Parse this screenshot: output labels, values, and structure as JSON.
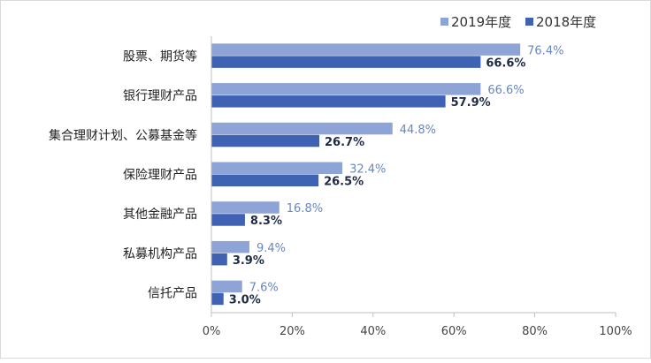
{
  "chart_data": {
    "type": "bar",
    "orientation": "horizontal",
    "categories": [
      "股票、期货等",
      "银行理财产品",
      "集合理财计划、公募基金等",
      "保险理财产品",
      "其他金融产品",
      "私募机构产品",
      "信托产品"
    ],
    "series": [
      {
        "name": "2019年度",
        "values": [
          76.4,
          66.6,
          44.8,
          32.4,
          16.8,
          9.4,
          7.6
        ],
        "labels": [
          "76.4%",
          "66.6%",
          "44.8%",
          "32.4%",
          "16.8%",
          "9.4%",
          "7.6%"
        ],
        "color": "#8EA3D6",
        "label_color": "#6A86C0"
      },
      {
        "name": "2018年度",
        "values": [
          66.6,
          57.9,
          26.7,
          26.5,
          8.3,
          3.9,
          3.0
        ],
        "labels": [
          "66.6%",
          "57.9%",
          "26.7%",
          "26.5%",
          "8.3%",
          "3.9%",
          "3.0%"
        ],
        "color": "#3F62B3",
        "label_color": "#1F2A44"
      }
    ],
    "xlim": [
      0,
      100
    ],
    "xticks": [
      "0%",
      "20%",
      "40%",
      "60%",
      "80%",
      "100%"
    ],
    "xtick_values": [
      0,
      20,
      40,
      60,
      80,
      100
    ],
    "grid": false,
    "legend_position": "top-right"
  }
}
